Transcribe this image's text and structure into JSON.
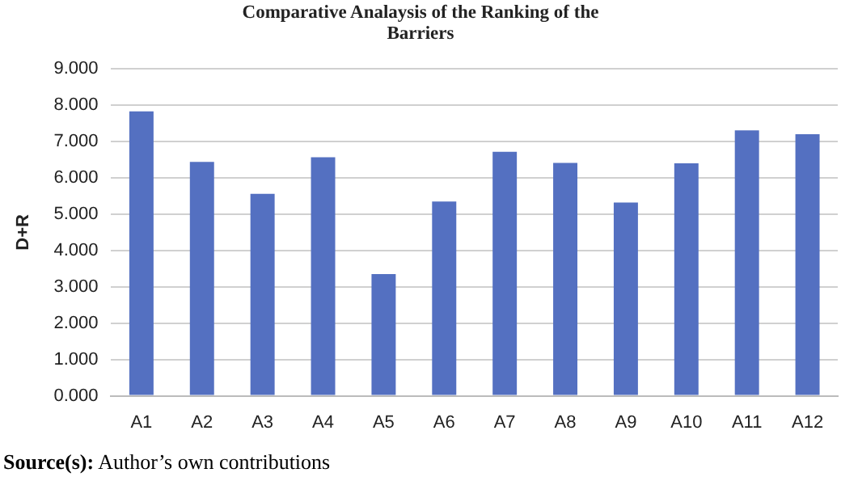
{
  "chart_data": {
    "type": "bar",
    "title": "Comparative Analaysis of the Ranking of the Barriers",
    "ylabel": "D+R",
    "categories": [
      "A1",
      "A2",
      "A3",
      "A4",
      "A5",
      "A6",
      "A7",
      "A8",
      "A9",
      "A10",
      "A11",
      "A12"
    ],
    "values": [
      7.83,
      6.44,
      5.56,
      6.57,
      3.35,
      5.35,
      6.72,
      6.41,
      5.32,
      6.4,
      7.31,
      7.2
    ],
    "color": "#5470c1",
    "ylim": [
      0,
      9
    ],
    "yticks": [
      {
        "value": 0,
        "label": "0.000"
      },
      {
        "value": 1,
        "label": "1.000"
      },
      {
        "value": 2,
        "label": "2.000"
      },
      {
        "value": 3,
        "label": "3.000"
      },
      {
        "value": 4,
        "label": "4.000"
      },
      {
        "value": 5,
        "label": "5.000"
      },
      {
        "value": 6,
        "label": "6.000"
      },
      {
        "value": 7,
        "label": "7.000"
      },
      {
        "value": 8,
        "label": "8.000"
      },
      {
        "value": 9,
        "label": "9.000"
      }
    ],
    "grid": "y",
    "annotations": [
      "Source(s): Author’s own contributions"
    ]
  }
}
